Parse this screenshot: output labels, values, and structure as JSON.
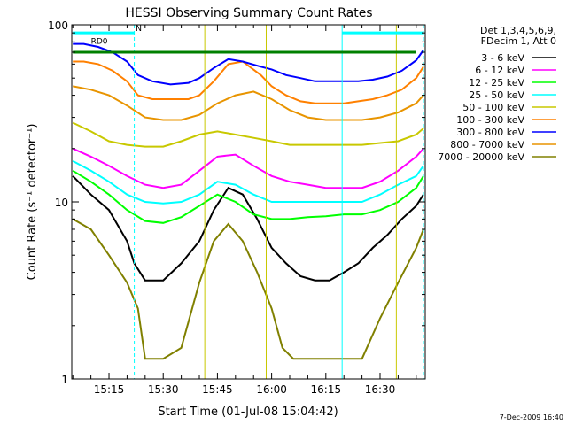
{
  "chart_data": {
    "type": "line",
    "title": "HESSI Observing Summary Count Rates",
    "xlabel": "Start Time (01-Jul-08 15:04:42)",
    "ylabel": "Count Rate (s⁻¹ detector⁻¹)",
    "x_unit": "minutes after 15:00 UT",
    "x_ticks": [
      {
        "x": 15,
        "label": "15:15"
      },
      {
        "x": 30,
        "label": "15:30"
      },
      {
        "x": 45,
        "label": "15:45"
      },
      {
        "x": 60,
        "label": "16:00"
      },
      {
        "x": 75,
        "label": "16:15"
      },
      {
        "x": 90,
        "label": "16:30"
      }
    ],
    "xlim": [
      4.7,
      102.5
    ],
    "ylim": [
      1,
      100
    ],
    "yscale": "log",
    "y_ticks": [
      {
        "y": 1,
        "label": "1"
      },
      {
        "y": 10,
        "label": "10"
      },
      {
        "y": 100,
        "label": "100"
      }
    ],
    "grid": false,
    "legend_position": "right",
    "legend_header": [
      "Det 1,3,4,5,6,9,",
      "FDecim 1, Att 0"
    ],
    "series": [
      {
        "name": "3 - 6 keV",
        "color": "#000000",
        "x": [
          5,
          10,
          15,
          20,
          22,
          25,
          30,
          35,
          40,
          44,
          48,
          52,
          56,
          60,
          64,
          68,
          72,
          76,
          80,
          84,
          88,
          92,
          96,
          100,
          102
        ],
        "y": [
          14,
          11,
          9,
          6,
          4.5,
          3.6,
          3.6,
          4.5,
          6,
          9,
          12,
          11,
          8,
          5.5,
          4.5,
          3.8,
          3.6,
          3.6,
          4,
          4.5,
          5.5,
          6.5,
          8,
          9.5,
          11
        ]
      },
      {
        "name": "6 - 12 keV",
        "color": "#ff00ff",
        "x": [
          5,
          10,
          15,
          20,
          25,
          30,
          35,
          40,
          45,
          50,
          55,
          60,
          65,
          70,
          75,
          80,
          85,
          90,
          95,
          100,
          102
        ],
        "y": [
          20,
          18,
          16,
          14,
          12.5,
          12,
          12.5,
          15,
          18,
          18.5,
          16,
          14,
          13,
          12.5,
          12,
          12,
          12,
          13,
          15,
          18,
          20
        ]
      },
      {
        "name": "12 - 25 keV",
        "color": "#00ff00",
        "x": [
          5,
          10,
          15,
          20,
          25,
          30,
          35,
          40,
          45,
          50,
          55,
          60,
          65,
          70,
          75,
          80,
          85,
          90,
          95,
          100,
          102
        ],
        "y": [
          15,
          13,
          11,
          9,
          7.8,
          7.6,
          8.2,
          9.5,
          11,
          10,
          8.5,
          8,
          8,
          8.2,
          8.3,
          8.5,
          8.5,
          9,
          10,
          12,
          14
        ]
      },
      {
        "name": "25 - 50 keV",
        "color": "#00ffff",
        "x": [
          5,
          10,
          15,
          20,
          25,
          30,
          35,
          40,
          45,
          50,
          55,
          60,
          65,
          70,
          75,
          80,
          85,
          90,
          95,
          100,
          102
        ],
        "y": [
          17,
          15,
          13,
          11,
          10,
          9.8,
          10,
          11,
          13,
          12.5,
          11,
          10,
          10,
          10,
          10,
          10,
          10,
          11,
          12.5,
          14,
          16
        ]
      },
      {
        "name": "50 - 100 keV",
        "color": "#c8c800",
        "x": [
          5,
          10,
          15,
          20,
          25,
          30,
          35,
          40,
          45,
          50,
          55,
          60,
          65,
          70,
          75,
          80,
          85,
          90,
          95,
          100,
          102
        ],
        "y": [
          28,
          25,
          22,
          21,
          20.5,
          20.5,
          22,
          24,
          25,
          24,
          23,
          22,
          21,
          21,
          21,
          21,
          21,
          21.5,
          22,
          24,
          26
        ]
      },
      {
        "name": "100 - 300 keV",
        "color": "#ff8000",
        "x": [
          5,
          8,
          12,
          16,
          20,
          23,
          27,
          32,
          37,
          40,
          44,
          48,
          52,
          57,
          60,
          64,
          68,
          72,
          76,
          80,
          84,
          88,
          92,
          96,
          100,
          102
        ],
        "y": [
          62,
          62,
          60,
          55,
          48,
          40,
          38,
          38,
          38,
          40,
          48,
          60,
          62,
          52,
          45,
          40,
          37,
          36,
          36,
          36,
          37,
          38,
          40,
          43,
          50,
          58
        ]
      },
      {
        "name": "300 - 800 keV",
        "color": "#0000ff",
        "x": [
          5,
          8,
          12,
          16,
          20,
          23,
          27,
          32,
          37,
          40,
          44,
          48,
          52,
          57,
          60,
          64,
          68,
          72,
          76,
          80,
          84,
          88,
          92,
          96,
          100,
          102
        ],
        "y": [
          78,
          78,
          75,
          70,
          62,
          52,
          48,
          46,
          47,
          50,
          57,
          64,
          62,
          58,
          56,
          52,
          50,
          48,
          48,
          48,
          48,
          49,
          51,
          55,
          63,
          72
        ]
      },
      {
        "name": "800 - 7000 keV",
        "color": "#e89400",
        "x": [
          5,
          10,
          15,
          20,
          25,
          30,
          35,
          40,
          45,
          50,
          55,
          60,
          65,
          70,
          75,
          80,
          85,
          90,
          95,
          100,
          102
        ],
        "y": [
          45,
          43,
          40,
          35,
          30,
          29,
          29,
          31,
          36,
          40,
          42,
          38,
          33,
          30,
          29,
          29,
          29,
          30,
          32,
          36,
          40
        ]
      },
      {
        "name": "7000 - 20000 keV",
        "color": "#808000",
        "x": [
          5,
          10,
          15,
          20,
          23,
          25,
          30,
          35,
          40,
          44,
          48,
          52,
          56,
          60,
          63,
          66,
          70,
          75,
          80,
          85,
          90,
          95,
          100,
          102
        ],
        "y": [
          8,
          7,
          5,
          3.5,
          2.5,
          1.3,
          1.3,
          1.5,
          3.5,
          6,
          7.5,
          6,
          4,
          2.5,
          1.5,
          1.3,
          1.3,
          1.3,
          1.3,
          1.3,
          2.2,
          3.5,
          5.5,
          7
        ]
      }
    ],
    "annotations": [
      {
        "label": "RD0",
        "x": 10,
        "y": 78,
        "color": "#008000"
      },
      {
        "label": "N",
        "x": 22.4,
        "y": 92,
        "color": "#00c8c8"
      }
    ],
    "vertical_markers": [
      {
        "x": 22,
        "color": "#00ffff",
        "dashed": true
      },
      {
        "x": 102,
        "color": "#00ffff",
        "dashed": true
      },
      {
        "x": 41.5,
        "color": "#c8c800",
        "dashed": false
      },
      {
        "x": 58.5,
        "color": "#c8c800",
        "dashed": false
      },
      {
        "x": 79.5,
        "color": "#00ffff",
        "dashed": false
      },
      {
        "x": 94.5,
        "color": "#c8c800",
        "dashed": false
      }
    ],
    "flag_bars": [
      {
        "name": "flag-bar-green-1",
        "color": "#008000",
        "y": 70,
        "x": [
          5,
          100
        ]
      },
      {
        "name": "flag-bar-cyan-1",
        "color": "#00ffff",
        "y": 90,
        "x": [
          5,
          22
        ]
      },
      {
        "name": "flag-bar-cyan-2",
        "color": "#00ffff",
        "y": 90,
        "x": [
          79.5,
          102
        ]
      }
    ],
    "footer_date": "7-Dec-2009 16:40"
  }
}
